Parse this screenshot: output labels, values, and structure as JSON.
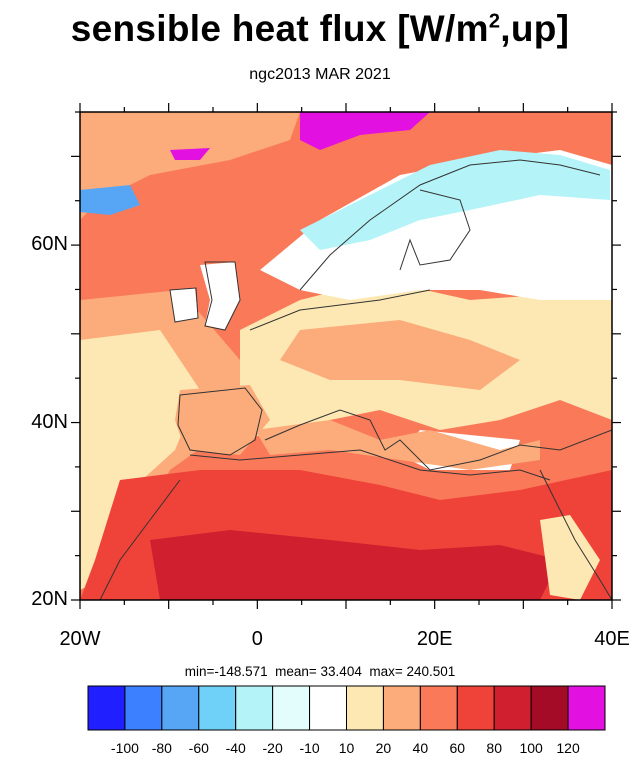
{
  "title_prefix": "sensible heat flux [W/m",
  "title_sup": "2",
  "title_suffix": ",up]",
  "subtitle": "ngc2013 MAR 2021",
  "map": {
    "lon_range": [
      -20,
      40
    ],
    "lat_range": [
      20,
      75
    ],
    "y_ticks": [
      {
        "lat": 60,
        "label": "60N"
      },
      {
        "lat": 40,
        "label": "40N"
      },
      {
        "lat": 20,
        "label": "20N"
      }
    ],
    "x_ticks": [
      {
        "lon": -20,
        "label": "20W"
      },
      {
        "lon": 0,
        "label": "0"
      },
      {
        "lon": 20,
        "label": "20E"
      },
      {
        "lon": 40,
        "label": "40E"
      }
    ]
  },
  "stats": "min=-148.571  mean= 33.404  max= 240.501",
  "colorbar": {
    "colors": [
      "#1f1fff",
      "#3d80ff",
      "#56a6f5",
      "#6fd0f8",
      "#b4f3f7",
      "#e2fdfb",
      "#ffffff",
      "#fde8b3",
      "#fcab7a",
      "#f97959",
      "#ef4339",
      "#d01f2e",
      "#a30b26",
      "#e210e0"
    ],
    "labels": [
      "-100",
      "-80",
      "-60",
      "-40",
      "-20",
      "-10",
      "10",
      "20",
      "40",
      "60",
      "80",
      "100",
      "120"
    ]
  },
  "colors": {
    "land_warm": "#fde8b3",
    "land_mid": "#fcab7a",
    "sahara": "#ef4339",
    "sahara_deep": "#d01f2e",
    "ocean": "#f97959",
    "snow": "#ffffff",
    "cold": "#b4f3f7",
    "hot_pole": "#e210e0"
  }
}
